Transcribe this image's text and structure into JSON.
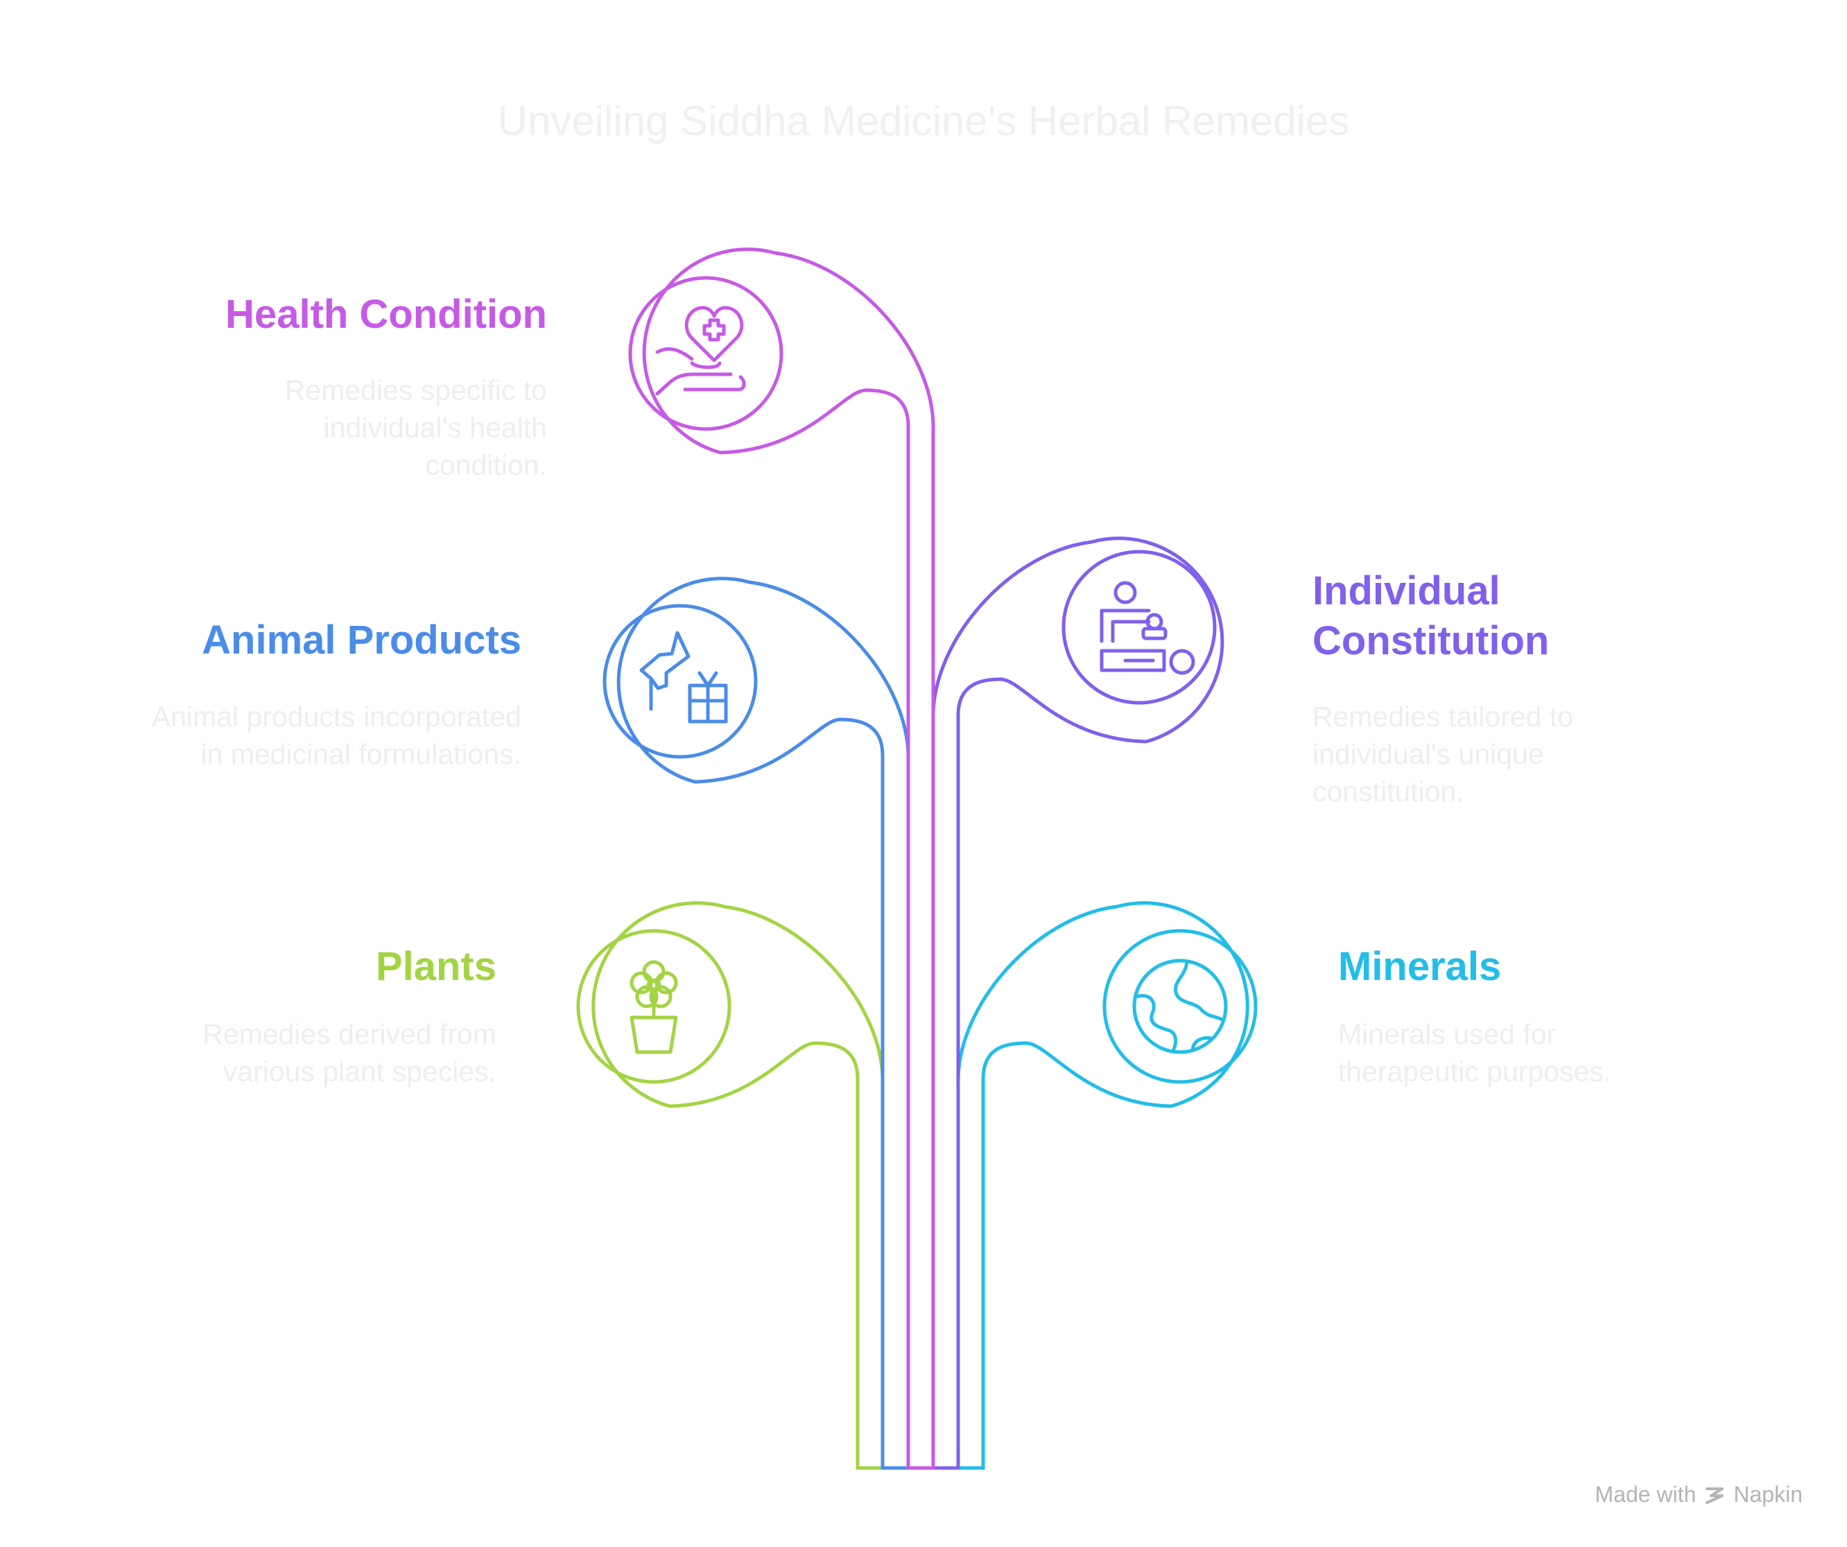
{
  "title": "Unveiling Siddha Medicine's Herbal Remedies",
  "branches": [
    {
      "id": "health-condition",
      "heading": "Health Condition",
      "description": "Remedies specific to individual's health condition.",
      "color": "#c65ae6",
      "icon": "heart-hand-icon"
    },
    {
      "id": "individual-constitution",
      "heading": "Individual Constitution",
      "description": "Remedies tailored to individual's unique constitution.",
      "color": "#8060ec",
      "icon": "massage-therapy-icon"
    },
    {
      "id": "animal-products",
      "heading": "Animal Products",
      "description": "Animal products incorporated in medicinal formulations.",
      "color": "#4a8ce8",
      "icon": "animal-gift-icon"
    },
    {
      "id": "minerals",
      "heading": "Minerals",
      "description": "Minerals used for therapeutic purposes.",
      "color": "#22bde8",
      "icon": "earth-globe-icon"
    },
    {
      "id": "plants",
      "heading": "Plants",
      "description": "Remedies derived from various plant species.",
      "color": "#a3d444",
      "icon": "potted-plant-icon"
    }
  ],
  "footer": {
    "prefix": "Made with",
    "brand": "Napkin",
    "icon": "napkin-logo-icon"
  }
}
